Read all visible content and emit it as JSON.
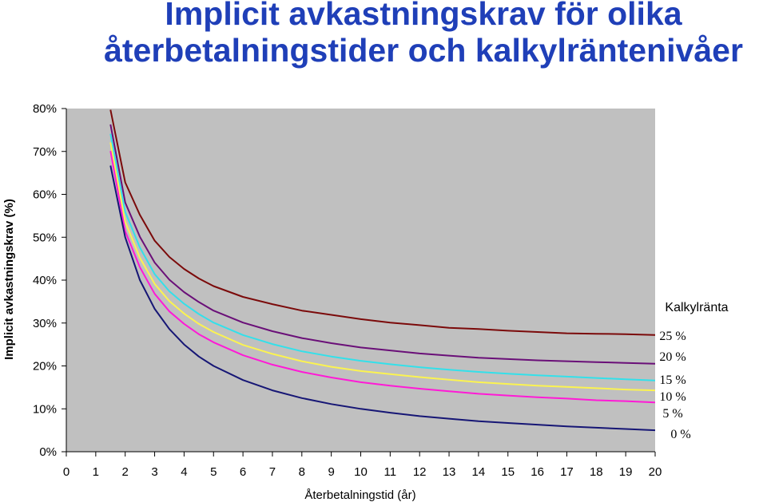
{
  "chart_data": {
    "type": "line",
    "title_line1": "Implicit avkastningskrav för olika",
    "title_line2": "återbetalningstider och kalkylräntenivåer",
    "xlabel": "Återbetalningstid (år)",
    "ylabel": "Implicit avkastningskrav (%)",
    "xlim": [
      0,
      20
    ],
    "ylim": [
      0,
      80
    ],
    "x_ticks": [
      "0",
      "1",
      "2",
      "3",
      "4",
      "5",
      "6",
      "7",
      "8",
      "9",
      "10",
      "11",
      "12",
      "13",
      "14",
      "15",
      "16",
      "17",
      "18",
      "19",
      "20"
    ],
    "y_ticks": [
      "0%",
      "10%",
      "20%",
      "30%",
      "40%",
      "50%",
      "60%",
      "70%",
      "80%"
    ],
    "y_tick_values": [
      0,
      10,
      20,
      30,
      40,
      50,
      60,
      70,
      80
    ],
    "legend_title": "Kalkylränta",
    "grid": false,
    "plot_background": "#c0c0c0",
    "legend_position": "right",
    "series": [
      {
        "name": "25 %",
        "color": "#7b0a0a",
        "rate": 25,
        "x": [
          1.5,
          2,
          2.5,
          3,
          3.5,
          4,
          4.5,
          5,
          6,
          7,
          8,
          9,
          10,
          11,
          12,
          13,
          14,
          15,
          16,
          17,
          18,
          19,
          20
        ],
        "values": [
          79.7,
          62.8,
          55.2,
          49.2,
          45.4,
          42.6,
          40.4,
          38.6,
          36.1,
          34.4,
          32.9,
          31.9,
          30.9,
          30.1,
          29.5,
          28.9,
          28.6,
          28.2,
          27.9,
          27.6,
          27.5,
          27.4,
          27.2
        ]
      },
      {
        "name": "20 %",
        "color": "#6a0f78",
        "rate": 20,
        "x": [
          1.5,
          2,
          2.5,
          3,
          3.5,
          4,
          4.5,
          5,
          6,
          7,
          8,
          9,
          10,
          11,
          12,
          13,
          14,
          15,
          16,
          17,
          18,
          19,
          20
        ],
        "values": [
          76.3,
          58.1,
          50.1,
          44.1,
          40.1,
          37.2,
          34.9,
          32.9,
          30.1,
          28.1,
          26.5,
          25.3,
          24.3,
          23.6,
          22.9,
          22.4,
          21.9,
          21.6,
          21.3,
          21.1,
          20.9,
          20.7,
          20.5
        ]
      },
      {
        "name": "15 %",
        "color": "#33e0ea",
        "rate": 15,
        "x": [
          1.5,
          2,
          2.5,
          3,
          3.5,
          4,
          4.5,
          5,
          6,
          7,
          8,
          9,
          10,
          11,
          12,
          13,
          14,
          15,
          16,
          17,
          18,
          19,
          20
        ],
        "values": [
          74.1,
          55.9,
          47.6,
          41.4,
          37.4,
          34.5,
          32.1,
          30.1,
          27.2,
          25.1,
          23.4,
          22.2,
          21.2,
          20.4,
          19.7,
          19.1,
          18.6,
          18.2,
          17.8,
          17.5,
          17.2,
          16.9,
          16.6
        ]
      },
      {
        "name": "10 %",
        "color": "#fbf350",
        "rate": 10,
        "x": [
          1.5,
          2,
          2.5,
          3,
          3.5,
          4,
          4.5,
          5,
          6,
          7,
          8,
          9,
          10,
          11,
          12,
          13,
          14,
          15,
          16,
          17,
          18,
          19,
          20
        ],
        "values": [
          72.1,
          53.6,
          45.2,
          39.1,
          35.1,
          32.2,
          29.8,
          27.9,
          24.9,
          22.8,
          21.1,
          19.8,
          18.8,
          18.1,
          17.4,
          16.8,
          16.2,
          15.8,
          15.4,
          15.1,
          14.8,
          14.5,
          14.3
        ]
      },
      {
        "name": "5 %",
        "color": "#ff1ad6",
        "rate": 5,
        "x": [
          1.5,
          2,
          2.5,
          3,
          3.5,
          4,
          4.5,
          5,
          6,
          7,
          8,
          9,
          10,
          11,
          12,
          13,
          14,
          15,
          16,
          17,
          18,
          19,
          20
        ],
        "values": [
          70.1,
          51.4,
          43.0,
          36.8,
          32.7,
          29.8,
          27.4,
          25.5,
          22.5,
          20.3,
          18.6,
          17.3,
          16.2,
          15.4,
          14.7,
          14.1,
          13.5,
          13.1,
          12.7,
          12.4,
          12.0,
          11.8,
          11.5
        ]
      },
      {
        "name": "0 %",
        "color": "#161675",
        "rate": 0,
        "x": [
          1.5,
          2,
          2.5,
          3,
          3.5,
          4,
          4.5,
          5,
          6,
          7,
          8,
          9,
          10,
          11,
          12,
          13,
          14,
          15,
          16,
          17,
          18,
          19,
          20
        ],
        "values": [
          66.7,
          50.0,
          40.0,
          33.3,
          28.6,
          25.0,
          22.2,
          20.0,
          16.7,
          14.3,
          12.5,
          11.1,
          10.0,
          9.1,
          8.3,
          7.7,
          7.1,
          6.7,
          6.3,
          5.9,
          5.6,
          5.3,
          5.0
        ]
      }
    ],
    "legend_labels": [
      {
        "series": 0,
        "text": "25 %"
      },
      {
        "series": 1,
        "text": "20 %"
      },
      {
        "series": 2,
        "text": "15 %"
      },
      {
        "series": 3,
        "text": "10 %"
      },
      {
        "series": 4,
        "text": "5 %"
      },
      {
        "series": 5,
        "text": "0 %"
      }
    ]
  }
}
